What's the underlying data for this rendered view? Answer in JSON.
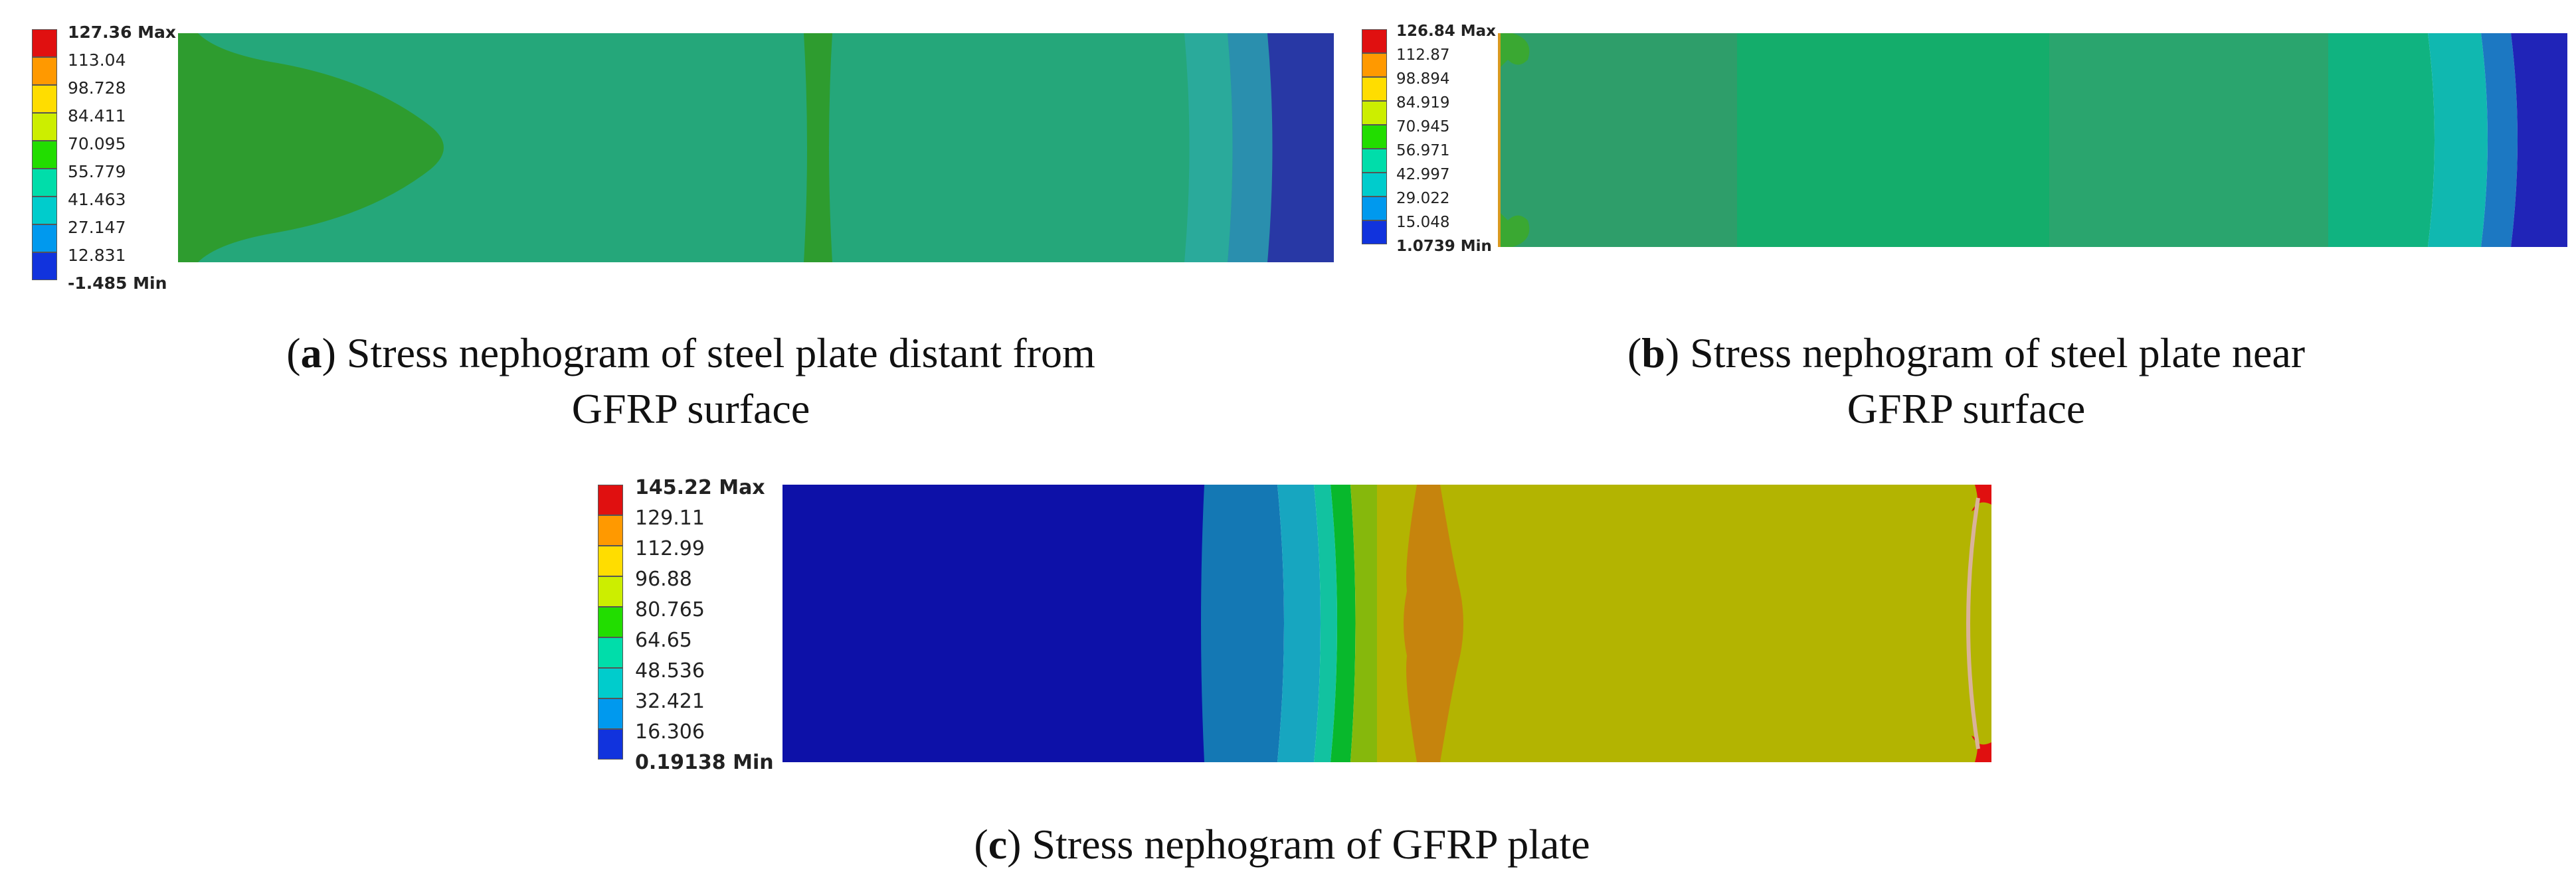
{
  "panels": {
    "a": {
      "legend": [
        "127.36 Max",
        "113.04",
        "98.728",
        "84.411",
        "70.095",
        "55.779",
        "41.463",
        "27.147",
        "12.831",
        "-1.485 Min"
      ],
      "caption_tag": "a",
      "caption_text": ") Stress nephogram of steel plate distant from",
      "caption_line2": "GFRP surface",
      "colors": {
        "base": "#25a77a",
        "bulb": "#2e9c2f",
        "band": "#2aaa9b",
        "band2": "#2a7fb0",
        "edge": "#2838a5"
      }
    },
    "b": {
      "legend": [
        "126.84 Max",
        "112.87",
        "98.894",
        "84.919",
        "70.945",
        "56.971",
        "42.997",
        "29.022",
        "15.048",
        "1.0739 Min"
      ],
      "caption_tag": "b",
      "caption_text": ") Stress nephogram of steel plate near",
      "caption_line2": "GFRP surface",
      "colors": {
        "dark": "#2e9e6a",
        "mid": "#14ad6b",
        "band": "#10b8b0",
        "band2": "#1c78c2",
        "edge": "#2024b8"
      }
    },
    "c": {
      "legend": [
        "145.22 Max",
        "129.11",
        "112.99",
        "96.88",
        "80.765",
        "64.65",
        "48.536",
        "32.421",
        "16.306",
        "0.19138 Min"
      ],
      "caption_tag": "c",
      "caption_text": ") Stress nephogram of GFRP plate",
      "colors": {
        "blue": "#0d11a8",
        "steel": "#1478b4",
        "cyan": "#17a6c0",
        "teal": "#12c2a0",
        "green": "#08b82c",
        "lime": "#86b80c",
        "yellow": "#b3b401",
        "orange": "#c6840d",
        "red": "#e01010"
      }
    }
  },
  "scale_colors": [
    "#e01010",
    "#ff9900",
    "#ffdd00",
    "#ccee00",
    "#22dd00",
    "#00ddaa",
    "#00cccc",
    "#0099ee",
    "#1133dd"
  ]
}
